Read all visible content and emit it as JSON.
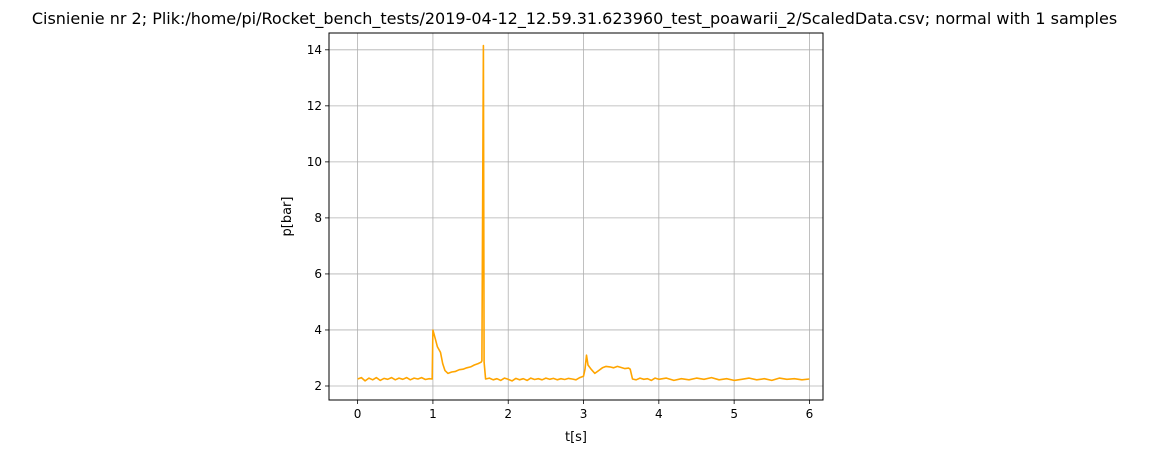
{
  "chart_data": {
    "type": "line",
    "title": "Cisnienie nr 2; Plik:/home/pi/Rocket_bench_tests/2019-04-12_12.59.31.623960_test_poawarii_2/ScaledData.csv; normal with 1 samples",
    "xlabel": "t[s]",
    "ylabel": "p[bar]",
    "xlim": [
      -0.38,
      6.18
    ],
    "ylim": [
      1.5,
      14.6
    ],
    "grid": true,
    "xticks": [
      0,
      1,
      2,
      3,
      4,
      5,
      6
    ],
    "yticks": [
      2,
      4,
      6,
      8,
      10,
      12,
      14
    ],
    "series": [
      {
        "color": "#ffa500",
        "x": [
          0.0,
          0.05,
          0.1,
          0.15,
          0.2,
          0.25,
          0.3,
          0.35,
          0.4,
          0.45,
          0.5,
          0.55,
          0.6,
          0.65,
          0.7,
          0.75,
          0.8,
          0.85,
          0.9,
          0.95,
          0.99,
          1.0,
          1.03,
          1.06,
          1.1,
          1.13,
          1.16,
          1.2,
          1.25,
          1.3,
          1.35,
          1.4,
          1.45,
          1.5,
          1.55,
          1.6,
          1.64,
          1.65,
          1.67,
          1.68,
          1.7,
          1.75,
          1.8,
          1.85,
          1.9,
          1.95,
          2.0,
          2.05,
          2.1,
          2.15,
          2.2,
          2.25,
          2.3,
          2.35,
          2.4,
          2.45,
          2.5,
          2.55,
          2.6,
          2.65,
          2.7,
          2.75,
          2.8,
          2.85,
          2.9,
          2.95,
          3.0,
          3.02,
          3.04,
          3.06,
          3.1,
          3.15,
          3.2,
          3.25,
          3.3,
          3.35,
          3.4,
          3.45,
          3.5,
          3.55,
          3.6,
          3.62,
          3.65,
          3.7,
          3.75,
          3.8,
          3.85,
          3.9,
          3.95,
          4.0,
          4.1,
          4.2,
          4.3,
          4.4,
          4.5,
          4.6,
          4.7,
          4.8,
          4.9,
          5.0,
          5.1,
          5.2,
          5.3,
          5.4,
          5.5,
          5.6,
          5.7,
          5.8,
          5.9,
          6.0
        ],
        "y": [
          2.25,
          2.3,
          2.18,
          2.28,
          2.22,
          2.3,
          2.2,
          2.27,
          2.24,
          2.3,
          2.22,
          2.28,
          2.24,
          2.3,
          2.22,
          2.28,
          2.25,
          2.3,
          2.23,
          2.26,
          2.25,
          4.0,
          3.7,
          3.4,
          3.2,
          2.8,
          2.55,
          2.45,
          2.5,
          2.52,
          2.58,
          2.6,
          2.65,
          2.68,
          2.75,
          2.8,
          2.85,
          2.9,
          14.15,
          2.85,
          2.25,
          2.28,
          2.22,
          2.26,
          2.2,
          2.28,
          2.24,
          2.18,
          2.27,
          2.22,
          2.26,
          2.2,
          2.28,
          2.23,
          2.26,
          2.22,
          2.28,
          2.24,
          2.27,
          2.22,
          2.26,
          2.23,
          2.27,
          2.25,
          2.22,
          2.3,
          2.35,
          2.6,
          3.1,
          2.75,
          2.6,
          2.45,
          2.55,
          2.65,
          2.7,
          2.68,
          2.65,
          2.7,
          2.66,
          2.62,
          2.64,
          2.6,
          2.25,
          2.22,
          2.28,
          2.24,
          2.26,
          2.2,
          2.28,
          2.24,
          2.28,
          2.2,
          2.26,
          2.22,
          2.28,
          2.24,
          2.3,
          2.22,
          2.26,
          2.2,
          2.24,
          2.28,
          2.22,
          2.26,
          2.2,
          2.28,
          2.24,
          2.26,
          2.22,
          2.25
        ]
      }
    ]
  }
}
